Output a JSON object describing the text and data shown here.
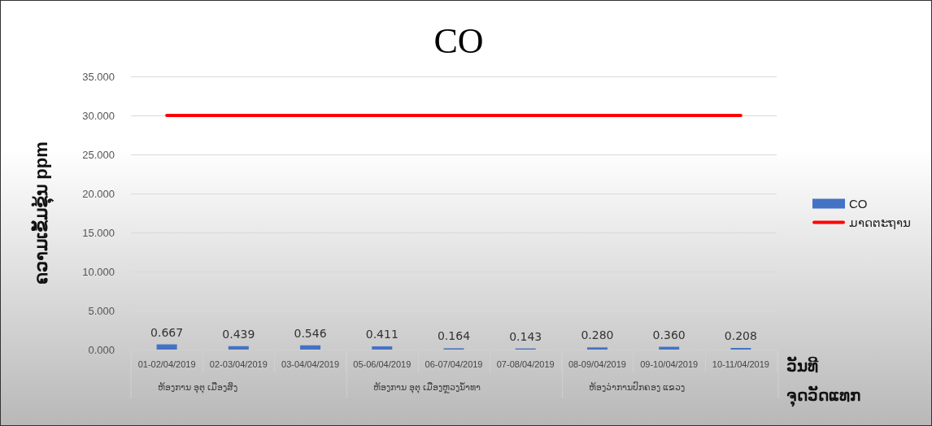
{
  "chart_data": {
    "type": "bar",
    "title": "CO",
    "xlabel": "ວັນທີ\nຈຸດວັດແທກ",
    "ylabel": "ຄວາມເຂັ້ມຂຸ້ນ ppm",
    "categories": [
      "01-02/04/2019",
      "02-03/04/2019",
      "03-04/04/2019",
      "05-06/04/2019",
      "06-07/04/2019",
      "07-08/04/2019",
      "08-09/04/2019",
      "09-10/04/2019",
      "10-11/04/2019"
    ],
    "series": [
      {
        "name": "CO",
        "color": "#4472c4",
        "values": [
          0.667,
          0.439,
          0.546,
          0.411,
          0.164,
          0.143,
          0.28,
          0.36,
          0.208
        ],
        "value_labels": [
          "0.667",
          "0.439",
          "0.546",
          "0.411",
          "0.164",
          "0.143",
          "0.280",
          "0.360",
          "0.208"
        ]
      },
      {
        "name": "ມາດຕະຖານ",
        "type": "line",
        "color": "#ff0000",
        "values": [
          30,
          30,
          30,
          30,
          30,
          30,
          30,
          30,
          30
        ]
      }
    ],
    "annotations": [
      "ຫ້ອງການ ອຸຕຸ ເມືອງສິງ",
      "ຫ້ອງການ ອຸຕຸ ເມືອງຫຼວງນ້ຳທາ",
      "ຫ້ອງວ່າການປົກຄອງ ແຂວງ"
    ],
    "ylim": [
      0,
      35
    ],
    "yticks": [
      {
        "value": 0,
        "label": "0.000"
      },
      {
        "value": 5,
        "label": "5.000"
      },
      {
        "value": 10,
        "label": "10.000"
      },
      {
        "value": 15,
        "label": "15.000"
      },
      {
        "value": 20,
        "label": "20.000"
      },
      {
        "value": 25,
        "label": "25.000"
      },
      {
        "value": 30,
        "label": "30.000"
      },
      {
        "value": 35,
        "label": "35.000"
      }
    ],
    "grid": "y",
    "legend": "right",
    "marker": "none"
  }
}
